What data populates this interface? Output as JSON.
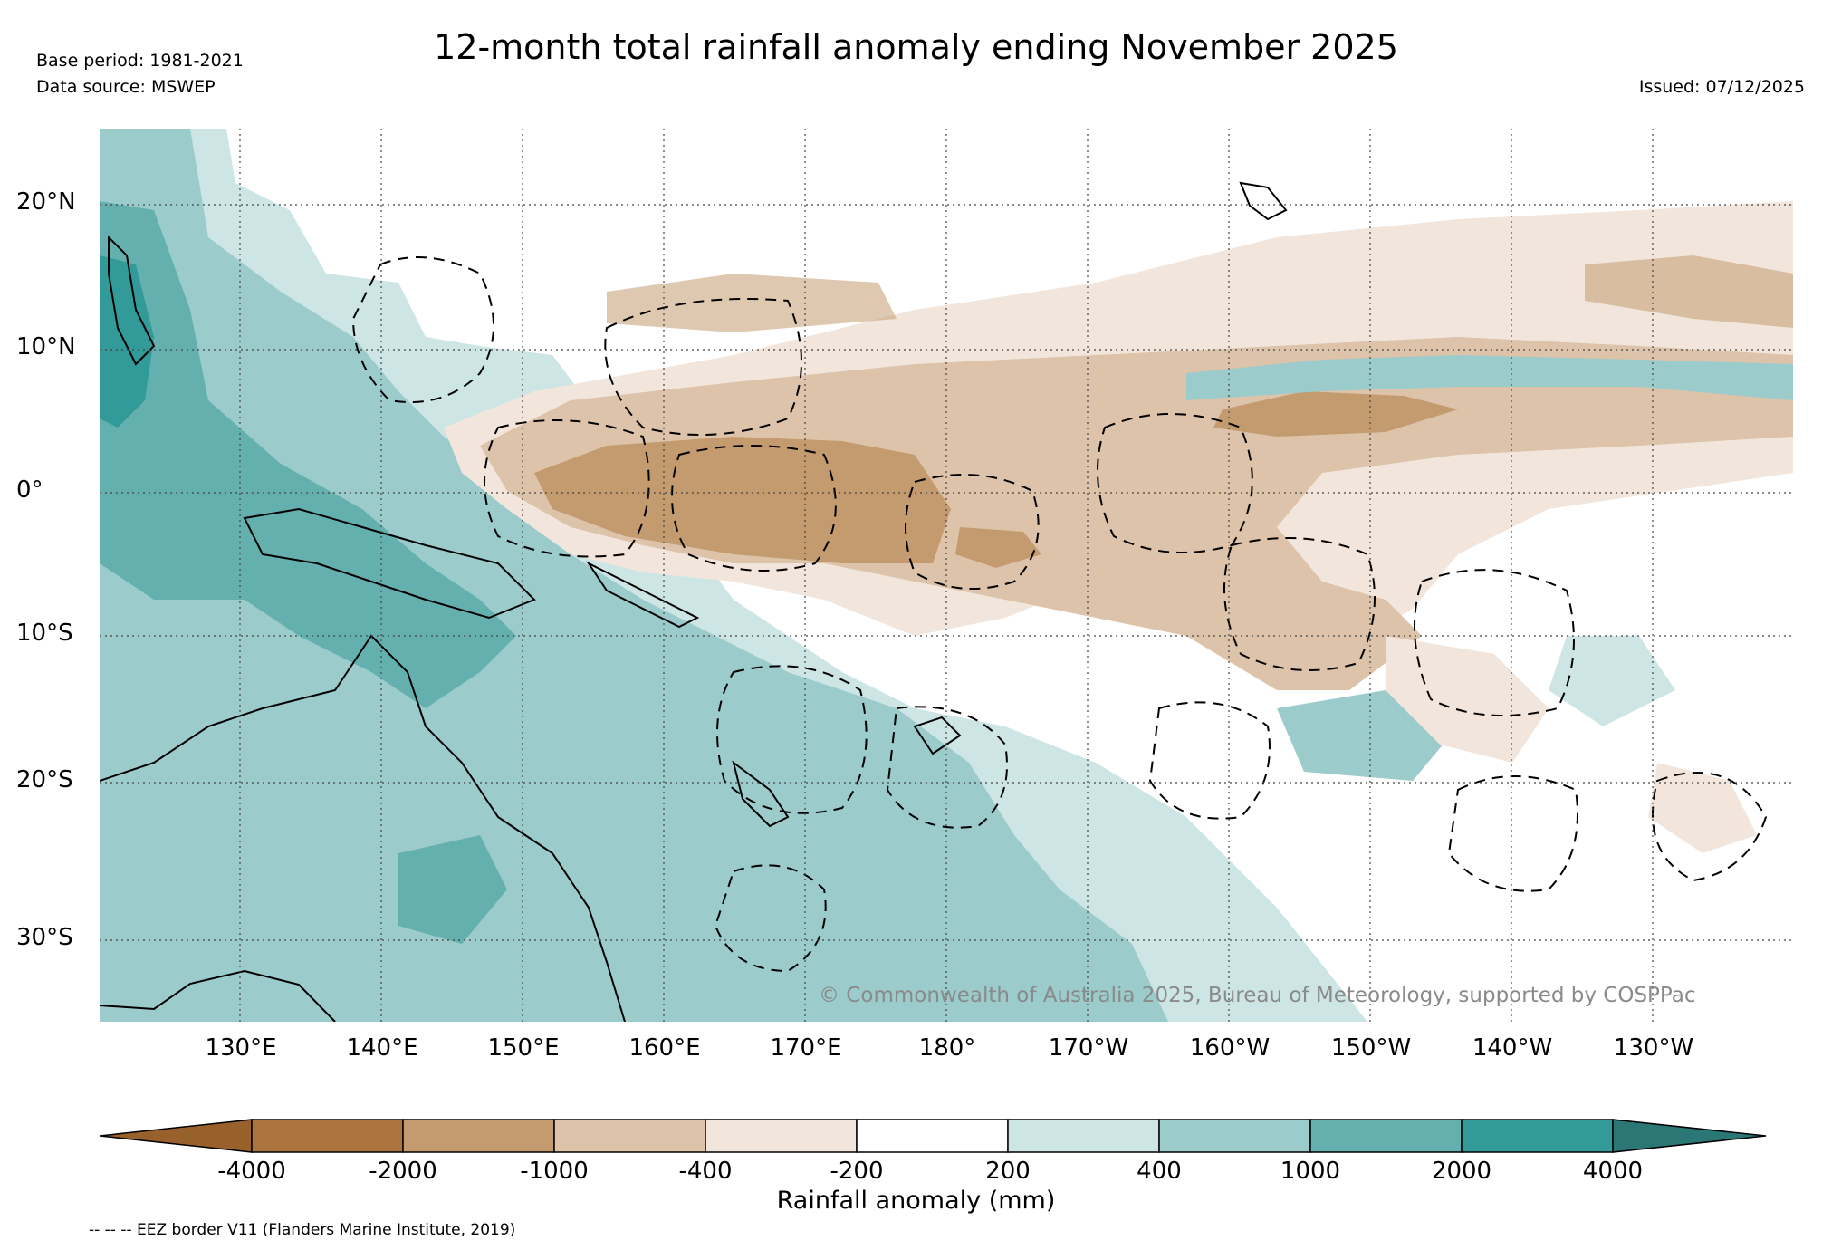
{
  "header": {
    "title": "12-month total rainfall anomaly ending November 2025",
    "base_period": "Base period: 1981-2021",
    "data_source": "Data source: MSWEP",
    "issued": "Issued: 07/12/2025"
  },
  "map": {
    "longitude_labels": [
      "130°E",
      "140°E",
      "150°E",
      "160°E",
      "170°E",
      "180°",
      "170°W",
      "160°W",
      "150°W",
      "140°W",
      "130°W"
    ],
    "latitude_labels": [
      "20°N",
      "10°N",
      "0°",
      "10°S",
      "20°S",
      "30°S"
    ],
    "copyright": "© Commonwealth of Australia 2025, Bureau of Meteorology, supported by COSPPac"
  },
  "colorbar": {
    "title": "Rainfall anomaly (mm)",
    "tick_labels": [
      "-4000",
      "-2000",
      "-1000",
      "-400",
      "-200",
      "200",
      "400",
      "1000",
      "2000",
      "4000"
    ],
    "colors": [
      "#98602a",
      "#ab733e",
      "#c49a6f",
      "#dcc3a9",
      "#f2e6dc",
      "#ffffff",
      "#cde5e5",
      "#9bcbcb",
      "#64b0af",
      "#329a98",
      "#2a7775"
    ]
  },
  "legend_note": "-- -- -- EEZ border V11 (Flanders Marine Institute, 2019)"
}
